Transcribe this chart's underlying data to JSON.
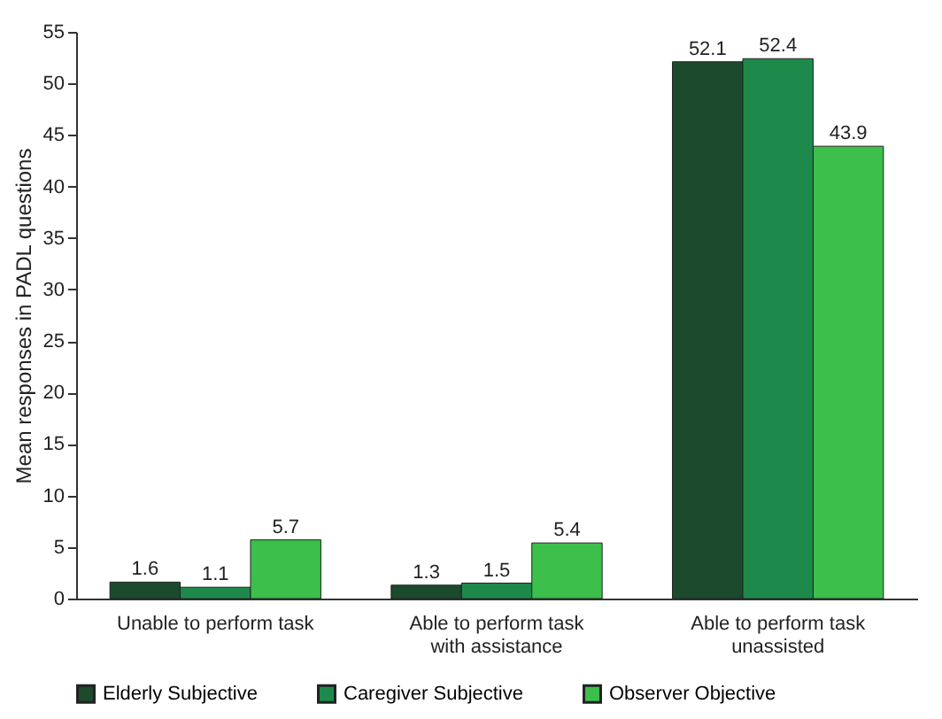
{
  "chart_data": {
    "type": "bar",
    "ylabel": "Mean responses in PADL questions",
    "categories": [
      "Unable to perform task",
      "Able to perform task with assistance",
      "Able to perform task unassisted"
    ],
    "series": [
      {
        "name": "Elderly Subjective",
        "color": "#1b4a2c",
        "values": [
          1.6,
          1.3,
          52.1
        ]
      },
      {
        "name": "Caregiver Subjective",
        "color": "#1d8a4c",
        "values": [
          1.1,
          1.5,
          52.4
        ]
      },
      {
        "name": "Observer Objective",
        "color": "#3cbf4b",
        "values": [
          5.7,
          5.4,
          43.9
        ]
      }
    ],
    "ylim": [
      0,
      55
    ],
    "yticks": [
      0,
      5,
      10,
      15,
      20,
      25,
      30,
      35,
      40,
      45,
      50,
      55
    ],
    "data_labels": true,
    "grid": false,
    "legend": "bottom"
  }
}
